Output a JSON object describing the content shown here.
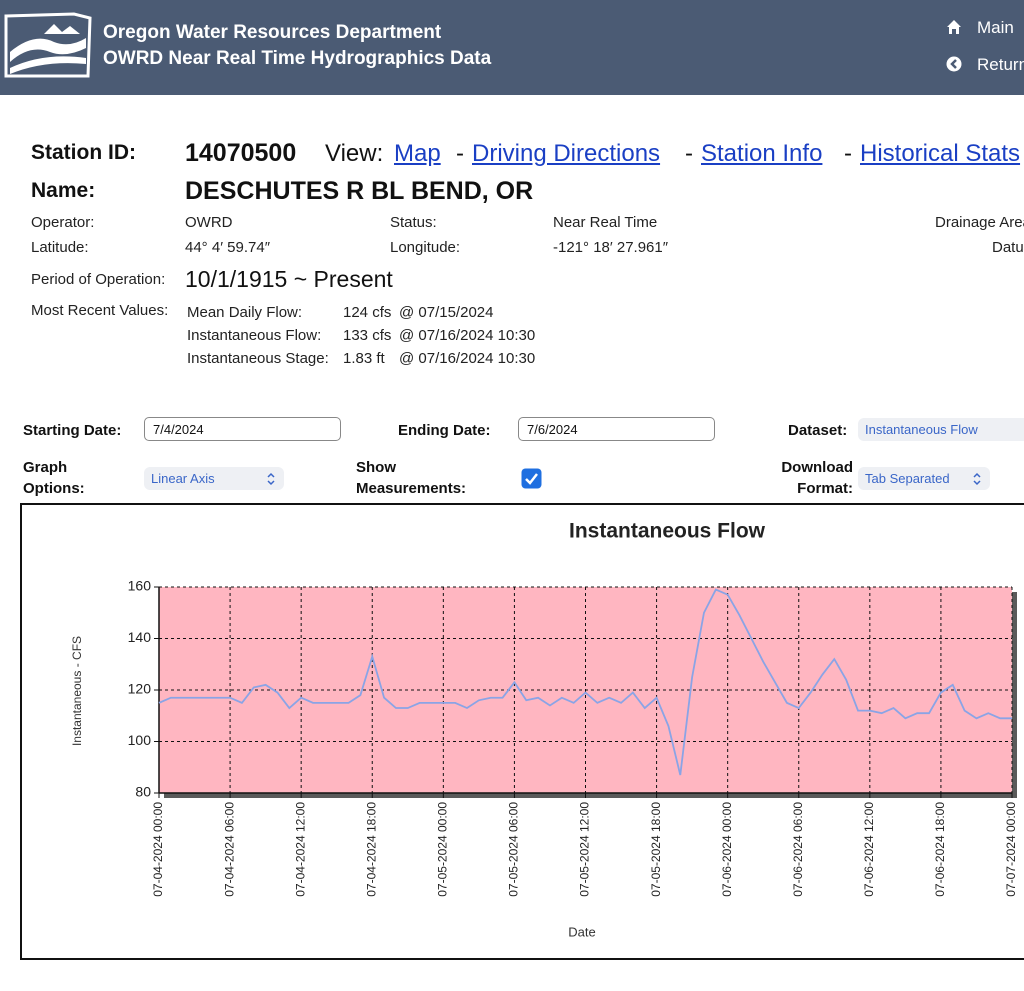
{
  "header": {
    "agency": "Oregon Water Resources Department",
    "subtitle": "OWRD Near Real Time Hydrographics Data",
    "nav": [
      "Main",
      "Return"
    ]
  },
  "station": {
    "id_label": "Station ID:",
    "id": "14070500",
    "view_label": "View:",
    "separator": "-",
    "links": [
      "Map",
      "Driving Directions",
      "Station Info",
      "Historical Stats"
    ],
    "name_label": "Name:",
    "name": "DESCHUTES R BL BEND, OR"
  },
  "details": {
    "operator_label": "Operator:",
    "operator": "OWRD",
    "status_label": "Status:",
    "status": "Near Real Time",
    "drainage_label": "Drainage Area",
    "latitude_label": "Latitude:",
    "latitude": "44° 4′ 59.74″",
    "longitude_label": "Longitude:",
    "longitude": "-121° 18′ 27.961″",
    "datum_label": "Datum",
    "period_label": "Period of Operation:",
    "period": "10/1/1915 ~ Present",
    "recent_label": "Most Recent Values:",
    "recent": [
      [
        "Mean Daily Flow:",
        "124 cfs",
        "@ 07/15/2024"
      ],
      [
        "Instantaneous Flow:",
        "133 cfs",
        "@ 07/16/2024 10:30"
      ],
      [
        "Instantaneous Stage:",
        "1.83 ft",
        "@ 07/16/2024 10:30"
      ]
    ]
  },
  "form": {
    "start_label": "Starting Date:",
    "start": "7/4/2024",
    "end_label": "Ending Date:",
    "end": "7/6/2024",
    "dataset_label": "Dataset:",
    "dataset": "Instantaneous Flow",
    "graph_label": "Graph Options:",
    "graph": "Linear Axis",
    "measure_label": "Show Measurements:",
    "measure": true,
    "download_label": "Download Format:",
    "download": "Tab Separated"
  },
  "chart_data": {
    "type": "line",
    "title": "Instantaneous Flow",
    "x_label": "Date",
    "y_label": "Instantaneous - CFS",
    "x": [
      "07-04-2024 00:00",
      "07-04-2024 01:00",
      "07-04-2024 02:00",
      "07-04-2024 03:00",
      "07-04-2024 04:00",
      "07-04-2024 05:00",
      "07-04-2024 06:00",
      "07-04-2024 07:00",
      "07-04-2024 08:00",
      "07-04-2024 09:00",
      "07-04-2024 10:00",
      "07-04-2024 11:00",
      "07-04-2024 12:00",
      "07-04-2024 13:00",
      "07-04-2024 14:00",
      "07-04-2024 15:00",
      "07-04-2024 16:00",
      "07-04-2024 17:00",
      "07-04-2024 18:00",
      "07-04-2024 19:00",
      "07-04-2024 20:00",
      "07-04-2024 21:00",
      "07-04-2024 22:00",
      "07-04-2024 23:00",
      "07-05-2024 00:00",
      "07-05-2024 01:00",
      "07-05-2024 02:00",
      "07-05-2024 03:00",
      "07-05-2024 04:00",
      "07-05-2024 05:00",
      "07-05-2024 06:00",
      "07-05-2024 07:00",
      "07-05-2024 08:00",
      "07-05-2024 09:00",
      "07-05-2024 10:00",
      "07-05-2024 11:00",
      "07-05-2024 12:00",
      "07-05-2024 13:00",
      "07-05-2024 14:00",
      "07-05-2024 15:00",
      "07-05-2024 16:00",
      "07-05-2024 17:00",
      "07-05-2024 18:00",
      "07-05-2024 19:00",
      "07-05-2024 20:00",
      "07-05-2024 21:00",
      "07-05-2024 22:00",
      "07-05-2024 23:00",
      "07-06-2024 00:00",
      "07-06-2024 01:00",
      "07-06-2024 02:00",
      "07-06-2024 03:00",
      "07-06-2024 04:00",
      "07-06-2024 05:00",
      "07-06-2024 06:00",
      "07-06-2024 07:00",
      "07-06-2024 08:00",
      "07-06-2024 09:00",
      "07-06-2024 10:00",
      "07-06-2024 11:00",
      "07-06-2024 12:00",
      "07-06-2024 13:00",
      "07-06-2024 14:00",
      "07-06-2024 15:00",
      "07-06-2024 16:00",
      "07-06-2024 17:00",
      "07-06-2024 18:00",
      "07-06-2024 19:00",
      "07-06-2024 20:00",
      "07-06-2024 21:00",
      "07-06-2024 22:00",
      "07-06-2024 23:00",
      "07-07-2024 00:00"
    ],
    "series": [
      {
        "name": "Instantaneous Flow",
        "color": "#8aa4e6",
        "values": [
          115,
          117,
          117,
          117,
          117,
          117,
          117,
          115,
          121,
          122,
          119,
          113,
          117,
          115,
          115,
          115,
          115,
          118,
          133,
          117,
          113,
          113,
          115,
          115,
          115,
          115,
          113,
          116,
          117,
          117,
          123,
          116,
          117,
          114,
          117,
          115,
          119,
          115,
          117,
          115,
          119,
          113,
          117,
          106,
          87,
          125,
          150,
          159,
          157,
          149,
          140,
          131,
          123,
          115,
          113,
          119,
          126,
          132,
          124,
          112,
          112,
          111,
          113,
          109,
          111,
          111,
          119,
          122,
          112,
          109,
          111,
          109,
          109
        ]
      }
    ],
    "xlim": [
      "07-04-2024 00:00",
      "07-07-2024 00:00"
    ],
    "xticks": [
      "07-04-2024 00:00",
      "07-04-2024 06:00",
      "07-04-2024 12:00",
      "07-04-2024 18:00",
      "07-05-2024 00:00",
      "07-05-2024 06:00",
      "07-05-2024 12:00",
      "07-05-2024 18:00",
      "07-06-2024 00:00",
      "07-06-2024 06:00",
      "07-06-2024 12:00",
      "07-06-2024 18:00",
      "07-07-2024 00:00"
    ],
    "ylim": [
      80,
      160
    ],
    "yticks": [
      80,
      100,
      120,
      140,
      160
    ],
    "grid": true,
    "plot_background": "#ffb6c1"
  }
}
